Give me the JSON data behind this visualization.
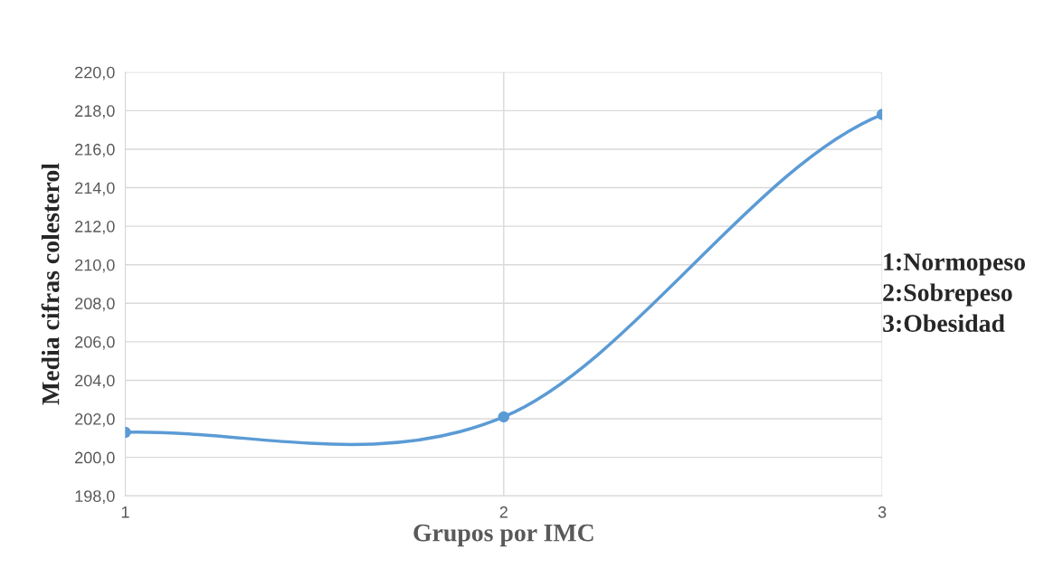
{
  "chart_data": {
    "type": "line",
    "xlabel": "Grupos por IMC",
    "ylabel": "Media cifras colesterol",
    "categories": [
      "1",
      "2",
      "3"
    ],
    "series": [
      {
        "color": "#5b9bd5",
        "values": [
          201.3,
          202.1,
          217.8
        ]
      }
    ],
    "ylim": [
      198,
      220
    ],
    "yticks": [
      {
        "value": 198,
        "label": "198,0"
      },
      {
        "value": 200,
        "label": "200,0"
      },
      {
        "value": 202,
        "label": "202,0"
      },
      {
        "value": 204,
        "label": "204,0"
      },
      {
        "value": 206,
        "label": "206,0"
      },
      {
        "value": 208,
        "label": "208,0"
      },
      {
        "value": 210,
        "label": "210,0"
      },
      {
        "value": 212,
        "label": "212,0"
      },
      {
        "value": 214,
        "label": "214,0"
      },
      {
        "value": 216,
        "label": "216,0"
      },
      {
        "value": 218,
        "label": "218,0"
      },
      {
        "value": 220,
        "label": "220,0"
      }
    ],
    "grid": true,
    "marker": "circle",
    "line_style": "solid",
    "annotations": [
      "1:Normopeso",
      "2:Sobrepeso",
      "3:Obesidad"
    ]
  }
}
